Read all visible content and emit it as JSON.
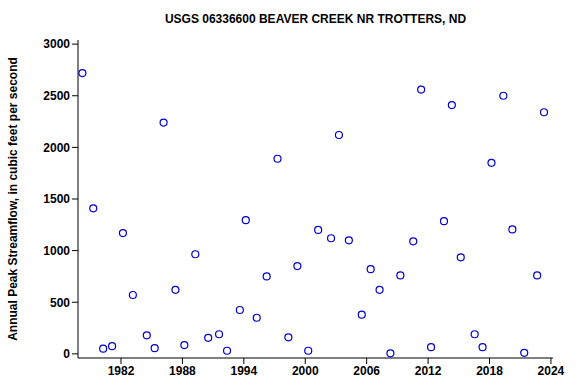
{
  "chart_data": {
    "type": "scatter",
    "title": "USGS 06336600 BEAVER CREEK NR TROTTERS, ND",
    "xlabel": null,
    "ylabel": "Annual Peak Streamflow, in cubic feet per second",
    "x": [
      1978.23,
      1979.29,
      1980.26,
      1981.13,
      1982.19,
      1983.16,
      1984.52,
      1985.29,
      1986.16,
      1987.32,
      1988.19,
      1989.26,
      1990.52,
      1991.58,
      1992.36,
      1993.61,
      1994.19,
      1995.26,
      1996.23,
      1997.29,
      1998.35,
      1999.23,
      2000.29,
      2001.26,
      2002.52,
      2003.29,
      2004.26,
      2005.52,
      2006.39,
      2007.26,
      2008.32,
      2009.29,
      2010.55,
      2011.32,
      2012.29,
      2013.55,
      2014.32,
      2015.19,
      2016.55,
      2017.32,
      2018.19,
      2019.35,
      2020.23,
      2021.39,
      2022.65,
      2023.32
    ],
    "values": [
      2720,
      1410,
      50,
      75,
      1170,
      570,
      180,
      55,
      2240,
      620,
      85,
      965,
      155,
      190,
      30,
      425,
      1295,
      350,
      750,
      1890,
      160,
      850,
      30,
      1200,
      1120,
      2120,
      1100,
      380,
      820,
      620,
      5,
      760,
      1090,
      2560,
      65,
      1285,
      2410,
      935,
      190,
      65,
      1850,
      2500,
      1205,
      10,
      760,
      2340
    ],
    "color": "#0000cc",
    "marker": "circle",
    "xlim": [
      1977.8,
      2024.2
    ],
    "xticks": [
      1982,
      1988,
      1994,
      2000,
      2006,
      2012,
      2018,
      2024
    ],
    "ylim": [
      -40,
      3040
    ],
    "yticks": [
      0,
      500,
      1000,
      1500,
      2000,
      2500,
      3000
    ],
    "grid": false
  }
}
